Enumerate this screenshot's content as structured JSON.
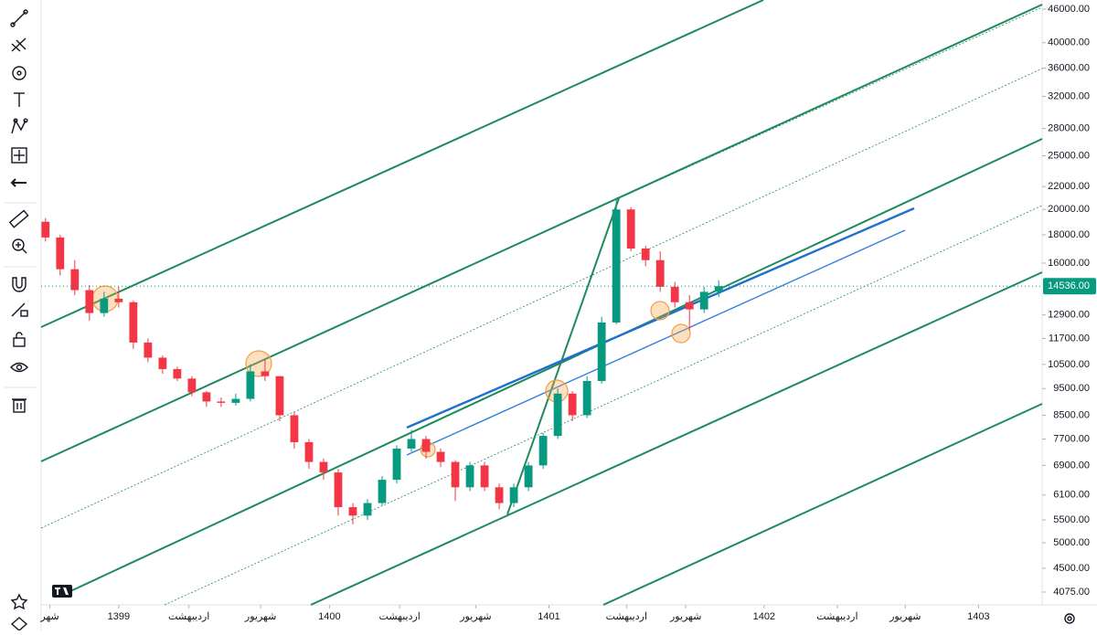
{
  "chart_data": {
    "type": "candlestick",
    "log_scale": true,
    "grid": false,
    "up_color": "#089981",
    "down_color": "#f23645",
    "x": [
      0,
      1,
      2,
      3,
      4,
      5,
      6,
      7,
      8,
      9,
      10,
      11,
      12,
      13,
      14,
      15,
      16,
      17,
      18,
      19,
      20,
      21,
      22,
      23,
      24,
      25,
      26,
      27,
      28,
      29,
      30,
      31,
      32,
      33,
      34,
      35,
      36,
      37,
      38,
      39,
      40,
      41,
      42,
      43,
      44,
      45,
      46
    ],
    "open": [
      19000,
      17800,
      15600,
      14300,
      13000,
      13800,
      13600,
      11500,
      10800,
      10300,
      9900,
      9350,
      9000,
      8950,
      9100,
      10200,
      10000,
      8500,
      7600,
      7000,
      6700,
      5800,
      5600,
      5900,
      6500,
      7400,
      7700,
      7300,
      7000,
      6300,
      6900,
      6300,
      5900,
      6300,
      6900,
      7800,
      9300,
      8500,
      9800,
      12500,
      20000,
      17000,
      16200,
      14500,
      13600,
      13200,
      14200
    ],
    "high": [
      19300,
      18000,
      16200,
      14600,
      14200,
      14500,
      13700,
      11700,
      10900,
      10400,
      10000,
      9400,
      9150,
      9300,
      10500,
      10700,
      10000,
      8600,
      7700,
      7100,
      6800,
      5900,
      6000,
      6600,
      7500,
      8000,
      7800,
      7400,
      7050,
      7000,
      7000,
      6400,
      6400,
      7000,
      7900,
      9500,
      9400,
      10000,
      12800,
      21000,
      20200,
      17200,
      16800,
      14800,
      14000,
      14500,
      14900
    ],
    "low": [
      17500,
      15200,
      14000,
      12600,
      12800,
      13300,
      11200,
      10600,
      10100,
      9800,
      9200,
      8800,
      8800,
      8850,
      9000,
      9800,
      8300,
      7400,
      6800,
      6500,
      5600,
      5400,
      5500,
      5850,
      6400,
      7300,
      7100,
      6850,
      5950,
      6200,
      6200,
      5750,
      5800,
      6200,
      6800,
      7700,
      8300,
      8400,
      9700,
      12400,
      16800,
      15800,
      14200,
      13300,
      12100,
      13000,
      13900
    ],
    "close": [
      17800,
      15600,
      14300,
      13000,
      13800,
      13600,
      11500,
      10800,
      10300,
      9900,
      9350,
      9000,
      8950,
      9100,
      10200,
      10000,
      8500,
      7600,
      7000,
      6700,
      5800,
      5600,
      5900,
      6500,
      7400,
      7700,
      7300,
      7000,
      6300,
      6900,
      6300,
      5900,
      6300,
      6900,
      7800,
      9300,
      8500,
      9800,
      12500,
      20000,
      17000,
      16200,
      14500,
      13600,
      13200,
      14200,
      14536
    ],
    "xlim": [
      -0.3,
      68.1
    ],
    "xticks": [
      {
        "value": 0.3,
        "label": "شهر"
      },
      {
        "value": 5,
        "label": "1399"
      },
      {
        "value": 9.8,
        "label": "اردیبهشت"
      },
      {
        "value": 14.7,
        "label": "شهریور"
      },
      {
        "value": 19.4,
        "label": "1400"
      },
      {
        "value": 24.2,
        "label": "اردیبهشت"
      },
      {
        "value": 29.4,
        "label": "شهریور"
      },
      {
        "value": 34.4,
        "label": "1401"
      },
      {
        "value": 39.7,
        "label": "اردیبهشت"
      },
      {
        "value": 43.75,
        "label": "شهریور"
      },
      {
        "value": 49.1,
        "label": "1402"
      },
      {
        "value": 54.1,
        "label": "اردیبهشت"
      },
      {
        "value": 58.75,
        "label": "شهریور"
      },
      {
        "value": 63.75,
        "label": "1403"
      }
    ],
    "ylim": [
      3864,
      47780
    ],
    "yticks": [
      {
        "value": 46000,
        "label": "46000.00"
      },
      {
        "value": 40000,
        "label": "40000.00"
      },
      {
        "value": 36000,
        "label": "36000.00"
      },
      {
        "value": 32000,
        "label": "32000.00"
      },
      {
        "value": 28000,
        "label": "28000.00"
      },
      {
        "value": 25000,
        "label": "25000.00"
      },
      {
        "value": 22000,
        "label": "22000.00"
      },
      {
        "value": 20000,
        "label": "20000.00"
      },
      {
        "value": 18000,
        "label": "18000.00"
      },
      {
        "value": 16000,
        "label": "16000.00"
      },
      {
        "value": 12900,
        "label": "12900.00"
      },
      {
        "value": 11700,
        "label": "11700.00"
      },
      {
        "value": 10500,
        "label": "10500.00"
      },
      {
        "value": 9500,
        "label": "9500.00"
      },
      {
        "value": 8500,
        "label": "8500.00"
      },
      {
        "value": 7700,
        "label": "7700.00"
      },
      {
        "value": 6900,
        "label": "6900.00"
      },
      {
        "value": 6100,
        "label": "6100.00"
      },
      {
        "value": 5500,
        "label": "5500.00"
      },
      {
        "value": 5000,
        "label": "5000.00"
      },
      {
        "value": 4500,
        "label": "4500.00"
      },
      {
        "value": 4075,
        "label": "4075.00"
      }
    ],
    "last_price": {
      "value": 14536,
      "label": "14536.00"
    }
  }
}
